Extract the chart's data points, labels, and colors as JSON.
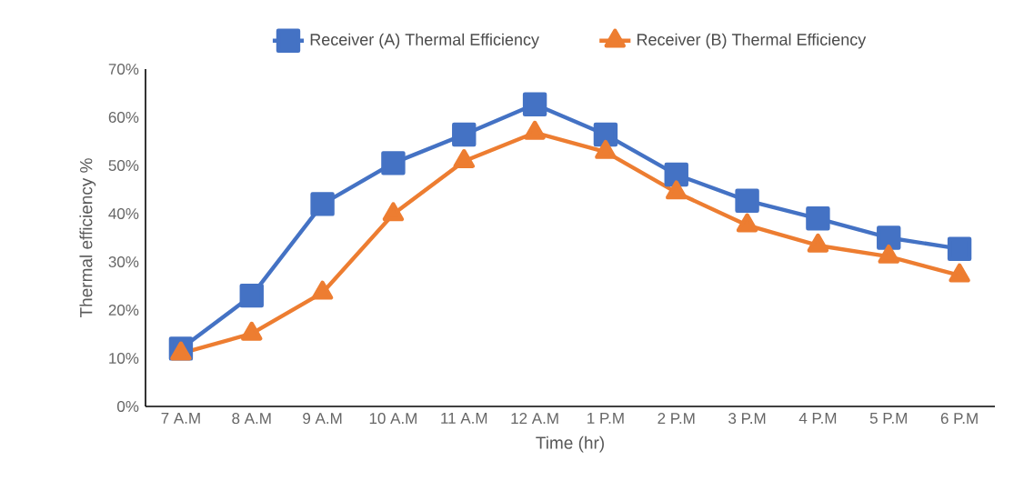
{
  "chart_data": {
    "type": "line",
    "xlabel": "Time (hr)",
    "ylabel": "Thermal efficiency %",
    "categories": [
      "7 A.M",
      "8 A.M",
      "9 A.M",
      "10 A.M",
      "11 A.M",
      "12 A.M",
      "1 P.M",
      "2 P.M",
      "3 P.M",
      "4 P.M",
      "5 P.M",
      "6 P.M"
    ],
    "series": [
      {
        "name": "Receiver (A) Thermal Efficiency",
        "color": "#4472c4",
        "marker": "square",
        "values": [
          12,
          23,
          42,
          50.5,
          56.4,
          62.7,
          56.4,
          48.1,
          42.7,
          39,
          35,
          32.7
        ]
      },
      {
        "name": "Receiver (B) Thermal Efficiency",
        "color": "#ed7d31",
        "marker": "triangle",
        "values": [
          11,
          15.1,
          23.6,
          39.9,
          50.9,
          56.8,
          52.8,
          44.4,
          37.6,
          33.4,
          31.1,
          27.2
        ]
      }
    ],
    "ylim": [
      0,
      70
    ],
    "yticks": [
      {
        "value": 0,
        "label": "0%"
      },
      {
        "value": 10,
        "label": "10%"
      },
      {
        "value": 20,
        "label": "20%"
      },
      {
        "value": 30,
        "label": "30%"
      },
      {
        "value": 40,
        "label": "40%"
      },
      {
        "value": 50,
        "label": "50%"
      },
      {
        "value": 60,
        "label": "60%"
      },
      {
        "value": 70,
        "label": "70%"
      }
    ],
    "grid": false,
    "legend": "top",
    "line_style": "solid"
  }
}
